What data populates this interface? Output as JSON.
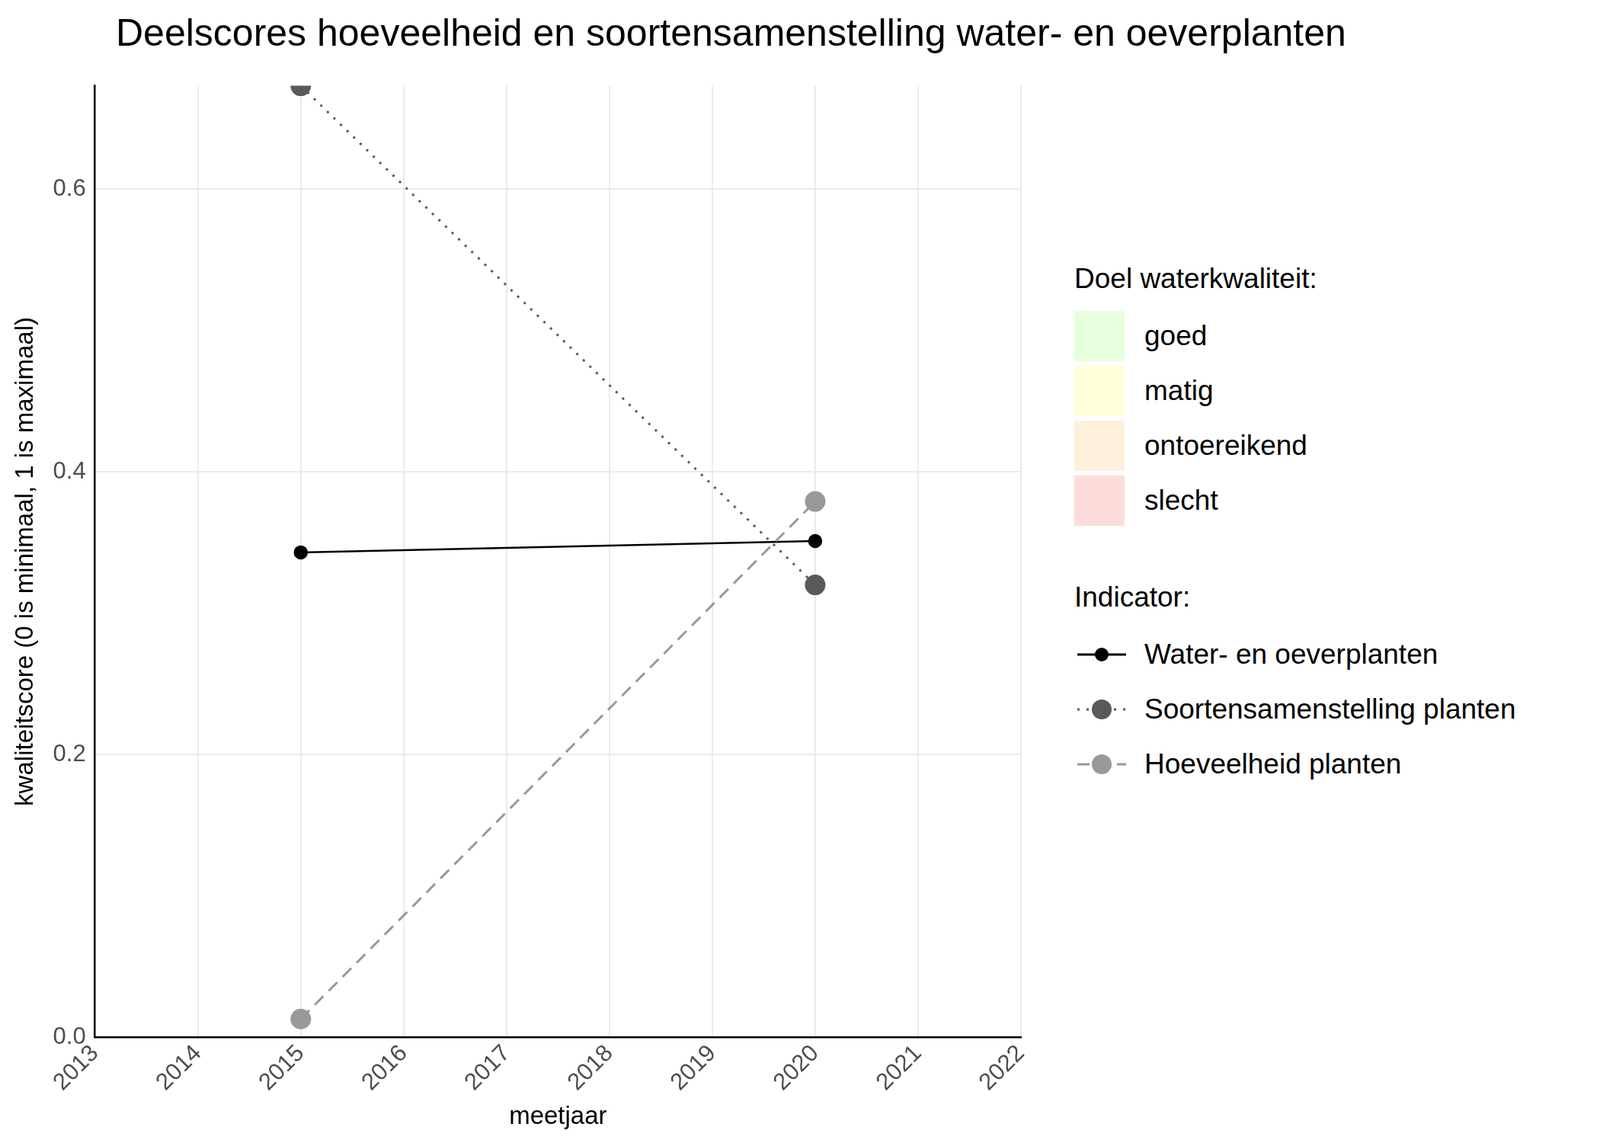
{
  "chart_data": {
    "type": "line",
    "title": "Deelscores hoeveelheid en soortensamenstelling water- en oeverplanten",
    "x_label": "meetjaar",
    "y_label": "kwaliteitscore (0 is minimaal, 1 is maximaal)",
    "x": [
      2015,
      2020
    ],
    "series": [
      {
        "name": "Water- en oeverplanten",
        "color": "#000000",
        "values": [
          0.343,
          0.351
        ],
        "marker": "circle",
        "line_style": "solid"
      },
      {
        "name": "Soortensamenstelling planten",
        "color": "#595959",
        "values": [
          0.673,
          0.32
        ],
        "marker": "circle",
        "line_style": "dotted"
      },
      {
        "name": "Hoeveelheid planten",
        "color": "#999999",
        "values": [
          0.013,
          0.379
        ],
        "marker": "circle",
        "line_style": "dashed"
      }
    ],
    "legend_title": "Indicator:",
    "quality_legend": {
      "title": "Doel waterkwaliteit:",
      "items": [
        {
          "name": "goed",
          "color": "#e6ffdc"
        },
        {
          "name": "matig",
          "color": "#ffffdc"
        },
        {
          "name": "ontoereikend",
          "color": "#fff0dc"
        },
        {
          "name": "slecht",
          "color": "#ffdcdc"
        }
      ]
    },
    "xlim": [
      2013,
      2022
    ],
    "xticks": [
      2013,
      2014,
      2015,
      2016,
      2017,
      2018,
      2019,
      2020,
      2021,
      2022
    ],
    "ylim": [
      0,
      0.673
    ],
    "yticks": [
      {
        "value": 0,
        "label": "0.0"
      },
      {
        "value": 0.2,
        "label": "0.2"
      },
      {
        "value": 0.4,
        "label": "0.4"
      },
      {
        "value": 0.6,
        "label": "0.6"
      }
    ],
    "grid": true,
    "legend": "right"
  }
}
